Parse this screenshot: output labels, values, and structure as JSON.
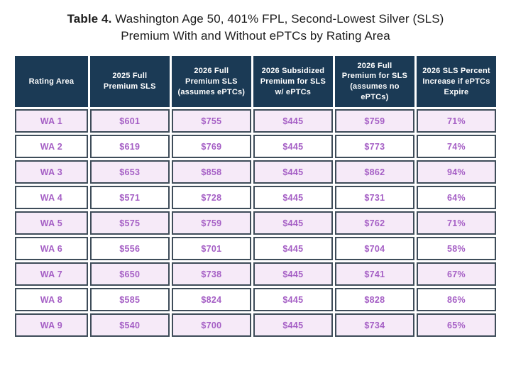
{
  "title": {
    "label": "Table 4.",
    "text": " Washington Age 50, 401% FPL, Second-Lowest Silver (SLS) Premium With and Without ePTCs by Rating Area"
  },
  "colors": {
    "header_bg": "#1b3a55",
    "header_text": "#ffffff",
    "row_bg": "#ffffff",
    "row_alt_bg": "#f6eaf8",
    "data_text": "#a55fc5",
    "border": "#3e4c59",
    "title_text": "#1c1c1c",
    "page_bg": "#ffffff"
  },
  "chart_data": {
    "type": "table",
    "title": "Table 4. Washington Age 50, 401% FPL, Second-Lowest Silver (SLS) Premium With and Without ePTCs by Rating Area",
    "columns": [
      "Rating Area",
      "2025 Full Premium SLS",
      "2026 Full Premium SLS (assumes ePTCs)",
      "2026 Subsidized Premium for SLS w/ ePTCs",
      "2026 Full Premium for SLS (assumes no ePTCs)",
      "2026 SLS Percent Increase if ePTCs Expire"
    ],
    "rows": [
      [
        "WA 1",
        "$601",
        "$755",
        "$445",
        "$759",
        "71%"
      ],
      [
        "WA 2",
        "$619",
        "$769",
        "$445",
        "$773",
        "74%"
      ],
      [
        "WA 3",
        "$653",
        "$858",
        "$445",
        "$862",
        "94%"
      ],
      [
        "WA 4",
        "$571",
        "$728",
        "$445",
        "$731",
        "64%"
      ],
      [
        "WA 5",
        "$575",
        "$759",
        "$445",
        "$762",
        "71%"
      ],
      [
        "WA 6",
        "$556",
        "$701",
        "$445",
        "$704",
        "58%"
      ],
      [
        "WA 7",
        "$650",
        "$738",
        "$445",
        "$741",
        "67%"
      ],
      [
        "WA 8",
        "$585",
        "$824",
        "$445",
        "$828",
        "86%"
      ],
      [
        "WA 9",
        "$540",
        "$700",
        "$445",
        "$734",
        "65%"
      ]
    ]
  }
}
